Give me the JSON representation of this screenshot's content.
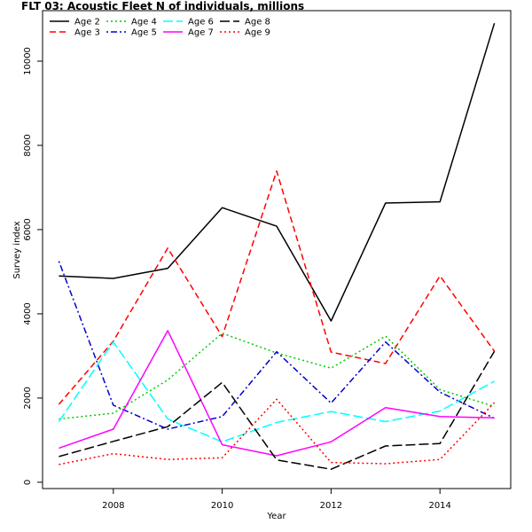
{
  "chart_data": {
    "type": "line",
    "title": "FLT 03: Acoustic Fleet   N of individuals, millions",
    "xlabel": "Year",
    "ylabel": "Survey index",
    "xlim": [
      2006.7,
      2015.3
    ],
    "ylim": [
      -150,
      11200
    ],
    "x_ticks": [
      "2008",
      "2010",
      "2012",
      "2014"
    ],
    "y_ticks": [
      "0",
      "2000",
      "4000",
      "6000",
      "8000",
      "10000"
    ],
    "x": [
      2007,
      2008,
      2009,
      2010,
      2011,
      2012,
      2013,
      2014,
      2015
    ],
    "legend_position": "top-left",
    "series": [
      {
        "name": "Age 2",
        "color": "#000000",
        "dash": "solid",
        "values": [
          4900,
          4840,
          5080,
          6520,
          6080,
          3830,
          6630,
          6660,
          10900
        ]
      },
      {
        "name": "Age 3",
        "color": "#ff0000",
        "dash": "dashed",
        "values": [
          1850,
          3350,
          5560,
          3460,
          7390,
          3090,
          2820,
          4900,
          3110
        ]
      },
      {
        "name": "Age 4",
        "color": "#00cc00",
        "dash": "dotted",
        "values": [
          1500,
          1640,
          2430,
          3540,
          3070,
          2710,
          3470,
          2200,
          1800
        ]
      },
      {
        "name": "Age 5",
        "color": "#0000cc",
        "dash": "dotdash",
        "values": [
          5250,
          1830,
          1260,
          1560,
          3100,
          1880,
          3330,
          2140,
          1520
        ]
      },
      {
        "name": "Age 6",
        "color": "#00ffff",
        "dash": "longdash",
        "values": [
          1440,
          3330,
          1500,
          960,
          1420,
          1680,
          1440,
          1690,
          2400
        ]
      },
      {
        "name": "Age 7",
        "color": "#ff00ff",
        "dash": "solid",
        "values": [
          810,
          1260,
          3600,
          890,
          630,
          960,
          1770,
          1560,
          1530
        ]
      },
      {
        "name": "Age 8",
        "color": "#000000",
        "dash": "longdash",
        "values": [
          610,
          970,
          1320,
          2370,
          530,
          310,
          860,
          920,
          3110
        ]
      },
      {
        "name": "Age 9",
        "color": "#ff0000",
        "dash": "dotted",
        "values": [
          420,
          680,
          540,
          580,
          1970,
          470,
          440,
          540,
          1890
        ]
      }
    ]
  }
}
